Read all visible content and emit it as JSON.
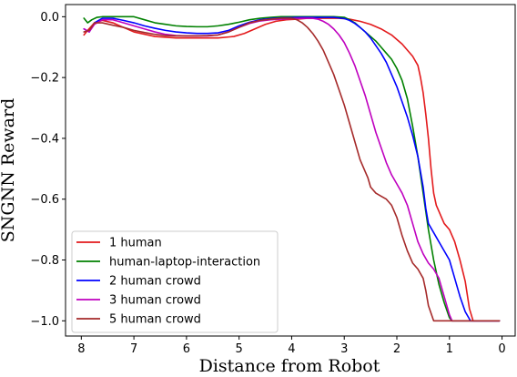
{
  "chart_data": {
    "type": "line",
    "xlabel": "Distance from Robot",
    "ylabel": "SNGNN Reward",
    "xlim": [
      8.3,
      -0.25
    ],
    "ylim": [
      -1.05,
      0.04
    ],
    "x_inverted": true,
    "grid": false,
    "legend_position": "lower-left",
    "xticks": [
      8,
      7,
      6,
      5,
      4,
      3,
      2,
      1,
      0
    ],
    "yticks": [
      0.0,
      -0.2,
      -0.4,
      -0.6,
      -0.8,
      -1.0
    ],
    "ytick_labels": [
      "0.0",
      "−0.2",
      "−0.4",
      "−0.6",
      "−0.8",
      "−1.0"
    ],
    "series": [
      {
        "name": "1 human",
        "color": "#e31a1c",
        "x": [
          7.95,
          7.88,
          7.75,
          7.6,
          7.4,
          7.2,
          7.0,
          6.6,
          6.2,
          5.8,
          5.4,
          5.1,
          4.9,
          4.7,
          4.5,
          4.3,
          4.1,
          3.9,
          3.7,
          3.5,
          3.3,
          3.1,
          2.9,
          2.7,
          2.5,
          2.3,
          2.1,
          1.9,
          1.7,
          1.6,
          1.55,
          1.5,
          1.45,
          1.4,
          1.35,
          1.3,
          1.25,
          1.2,
          1.15,
          1.1,
          1.0,
          0.9,
          0.8,
          0.7,
          0.62,
          0.55,
          0.4,
          0.2,
          0.05
        ],
        "values": [
          -0.06,
          -0.045,
          -0.02,
          -0.012,
          -0.02,
          -0.035,
          -0.05,
          -0.065,
          -0.07,
          -0.07,
          -0.07,
          -0.065,
          -0.055,
          -0.04,
          -0.025,
          -0.015,
          -0.01,
          -0.008,
          -0.005,
          -0.005,
          -0.005,
          -0.005,
          -0.008,
          -0.015,
          -0.025,
          -0.04,
          -0.06,
          -0.09,
          -0.13,
          -0.16,
          -0.2,
          -0.25,
          -0.32,
          -0.4,
          -0.5,
          -0.58,
          -0.62,
          -0.64,
          -0.66,
          -0.68,
          -0.7,
          -0.74,
          -0.8,
          -0.87,
          -0.96,
          -1.0,
          -1.0,
          -1.0,
          -1.0
        ]
      },
      {
        "name": "human-laptop-interaction",
        "color": "#008000",
        "x": [
          7.95,
          7.88,
          7.8,
          7.7,
          7.6,
          7.4,
          7.2,
          7.0,
          6.8,
          6.6,
          6.4,
          6.2,
          6.0,
          5.8,
          5.6,
          5.4,
          5.2,
          5.0,
          4.8,
          4.6,
          4.4,
          4.2,
          4.0,
          3.8,
          3.6,
          3.4,
          3.2,
          3.0,
          2.9,
          2.8,
          2.7,
          2.6,
          2.5,
          2.4,
          2.3,
          2.2,
          2.1,
          2.0,
          1.9,
          1.8,
          1.7,
          1.6,
          1.5,
          1.4,
          1.3,
          1.2,
          1.1,
          1.0,
          0.95,
          0.9,
          0.8,
          0.5,
          0.2,
          0.05
        ],
        "values": [
          -0.005,
          -0.02,
          -0.01,
          -0.002,
          0.0,
          0.0,
          0.0,
          0.0,
          -0.01,
          -0.02,
          -0.025,
          -0.03,
          -0.032,
          -0.033,
          -0.033,
          -0.03,
          -0.025,
          -0.018,
          -0.01,
          -0.005,
          -0.002,
          0.0,
          0.0,
          0.0,
          0.0,
          0.0,
          0.0,
          -0.002,
          -0.01,
          -0.02,
          -0.035,
          -0.05,
          -0.065,
          -0.08,
          -0.1,
          -0.12,
          -0.14,
          -0.17,
          -0.21,
          -0.27,
          -0.36,
          -0.46,
          -0.58,
          -0.7,
          -0.8,
          -0.88,
          -0.94,
          -0.99,
          -1.0,
          -1.0,
          -1.0,
          -1.0,
          -1.0,
          -1.0
        ]
      },
      {
        "name": "2 human crowd",
        "color": "#0000ff",
        "x": [
          7.95,
          7.85,
          7.75,
          7.6,
          7.4,
          7.2,
          7.0,
          6.8,
          6.6,
          6.4,
          6.2,
          6.0,
          5.8,
          5.6,
          5.4,
          5.2,
          5.0,
          4.8,
          4.6,
          4.4,
          4.2,
          4.0,
          3.8,
          3.6,
          3.4,
          3.2,
          3.0,
          2.9,
          2.8,
          2.7,
          2.6,
          2.5,
          2.4,
          2.3,
          2.2,
          2.1,
          2.0,
          1.9,
          1.8,
          1.7,
          1.6,
          1.5,
          1.45,
          1.4,
          1.3,
          1.2,
          1.1,
          1.0,
          0.9,
          0.8,
          0.7,
          0.6,
          0.5,
          0.3,
          0.05
        ],
        "values": [
          -0.04,
          -0.05,
          -0.02,
          -0.005,
          -0.005,
          -0.012,
          -0.02,
          -0.03,
          -0.038,
          -0.045,
          -0.05,
          -0.053,
          -0.055,
          -0.055,
          -0.053,
          -0.045,
          -0.03,
          -0.018,
          -0.01,
          -0.006,
          -0.004,
          -0.003,
          -0.002,
          -0.002,
          -0.002,
          -0.002,
          -0.006,
          -0.012,
          -0.022,
          -0.035,
          -0.05,
          -0.07,
          -0.095,
          -0.12,
          -0.15,
          -0.19,
          -0.23,
          -0.28,
          -0.33,
          -0.39,
          -0.46,
          -0.56,
          -0.63,
          -0.68,
          -0.71,
          -0.74,
          -0.77,
          -0.8,
          -0.86,
          -0.92,
          -0.97,
          -1.0,
          -1.0,
          -1.0,
          -1.0
        ]
      },
      {
        "name": "3 human crowd",
        "color": "#bf00bf",
        "x": [
          7.95,
          7.85,
          7.75,
          7.6,
          7.4,
          7.2,
          7.0,
          6.8,
          6.6,
          6.4,
          6.2,
          6.0,
          5.8,
          5.6,
          5.4,
          5.2,
          5.0,
          4.8,
          4.6,
          4.4,
          4.2,
          4.0,
          3.8,
          3.6,
          3.5,
          3.4,
          3.3,
          3.2,
          3.1,
          3.0,
          2.9,
          2.8,
          2.7,
          2.6,
          2.5,
          2.4,
          2.3,
          2.2,
          2.1,
          2.0,
          1.9,
          1.8,
          1.7,
          1.6,
          1.5,
          1.4,
          1.3,
          1.2,
          1.1,
          1.0,
          0.95,
          0.9,
          0.7,
          0.4,
          0.05
        ],
        "values": [
          -0.04,
          -0.05,
          -0.025,
          -0.01,
          -0.01,
          -0.02,
          -0.03,
          -0.04,
          -0.05,
          -0.058,
          -0.062,
          -0.063,
          -0.063,
          -0.063,
          -0.06,
          -0.05,
          -0.035,
          -0.022,
          -0.014,
          -0.01,
          -0.008,
          -0.006,
          -0.005,
          -0.005,
          -0.008,
          -0.015,
          -0.025,
          -0.04,
          -0.06,
          -0.085,
          -0.12,
          -0.16,
          -0.21,
          -0.26,
          -0.32,
          -0.38,
          -0.43,
          -0.48,
          -0.52,
          -0.55,
          -0.58,
          -0.62,
          -0.68,
          -0.74,
          -0.78,
          -0.81,
          -0.83,
          -0.86,
          -0.92,
          -0.98,
          -1.0,
          -1.0,
          -1.0,
          -1.0,
          -1.0
        ]
      },
      {
        "name": "5 human crowd",
        "color": "#a52a2a",
        "x": [
          7.95,
          7.85,
          7.75,
          7.6,
          7.4,
          7.2,
          7.0,
          6.8,
          6.6,
          6.4,
          6.2,
          6.0,
          5.8,
          5.6,
          5.4,
          5.2,
          5.0,
          4.8,
          4.6,
          4.4,
          4.2,
          4.0,
          3.9,
          3.8,
          3.7,
          3.6,
          3.5,
          3.4,
          3.3,
          3.2,
          3.1,
          3.0,
          2.9,
          2.8,
          2.7,
          2.6,
          2.55,
          2.5,
          2.4,
          2.3,
          2.2,
          2.1,
          2.0,
          1.9,
          1.8,
          1.7,
          1.6,
          1.5,
          1.45,
          1.4,
          1.3,
          1.1,
          0.8,
          0.5,
          0.05
        ],
        "values": [
          -0.05,
          -0.045,
          -0.02,
          -0.02,
          -0.028,
          -0.035,
          -0.045,
          -0.052,
          -0.058,
          -0.062,
          -0.063,
          -0.063,
          -0.063,
          -0.062,
          -0.06,
          -0.05,
          -0.035,
          -0.02,
          -0.012,
          -0.008,
          -0.005,
          -0.005,
          -0.01,
          -0.02,
          -0.035,
          -0.055,
          -0.08,
          -0.11,
          -0.15,
          -0.19,
          -0.24,
          -0.29,
          -0.35,
          -0.41,
          -0.47,
          -0.51,
          -0.53,
          -0.56,
          -0.58,
          -0.59,
          -0.6,
          -0.62,
          -0.66,
          -0.72,
          -0.77,
          -0.81,
          -0.83,
          -0.86,
          -0.9,
          -0.95,
          -1.0,
          -1.0,
          -1.0,
          -1.0,
          -1.0
        ]
      }
    ]
  }
}
